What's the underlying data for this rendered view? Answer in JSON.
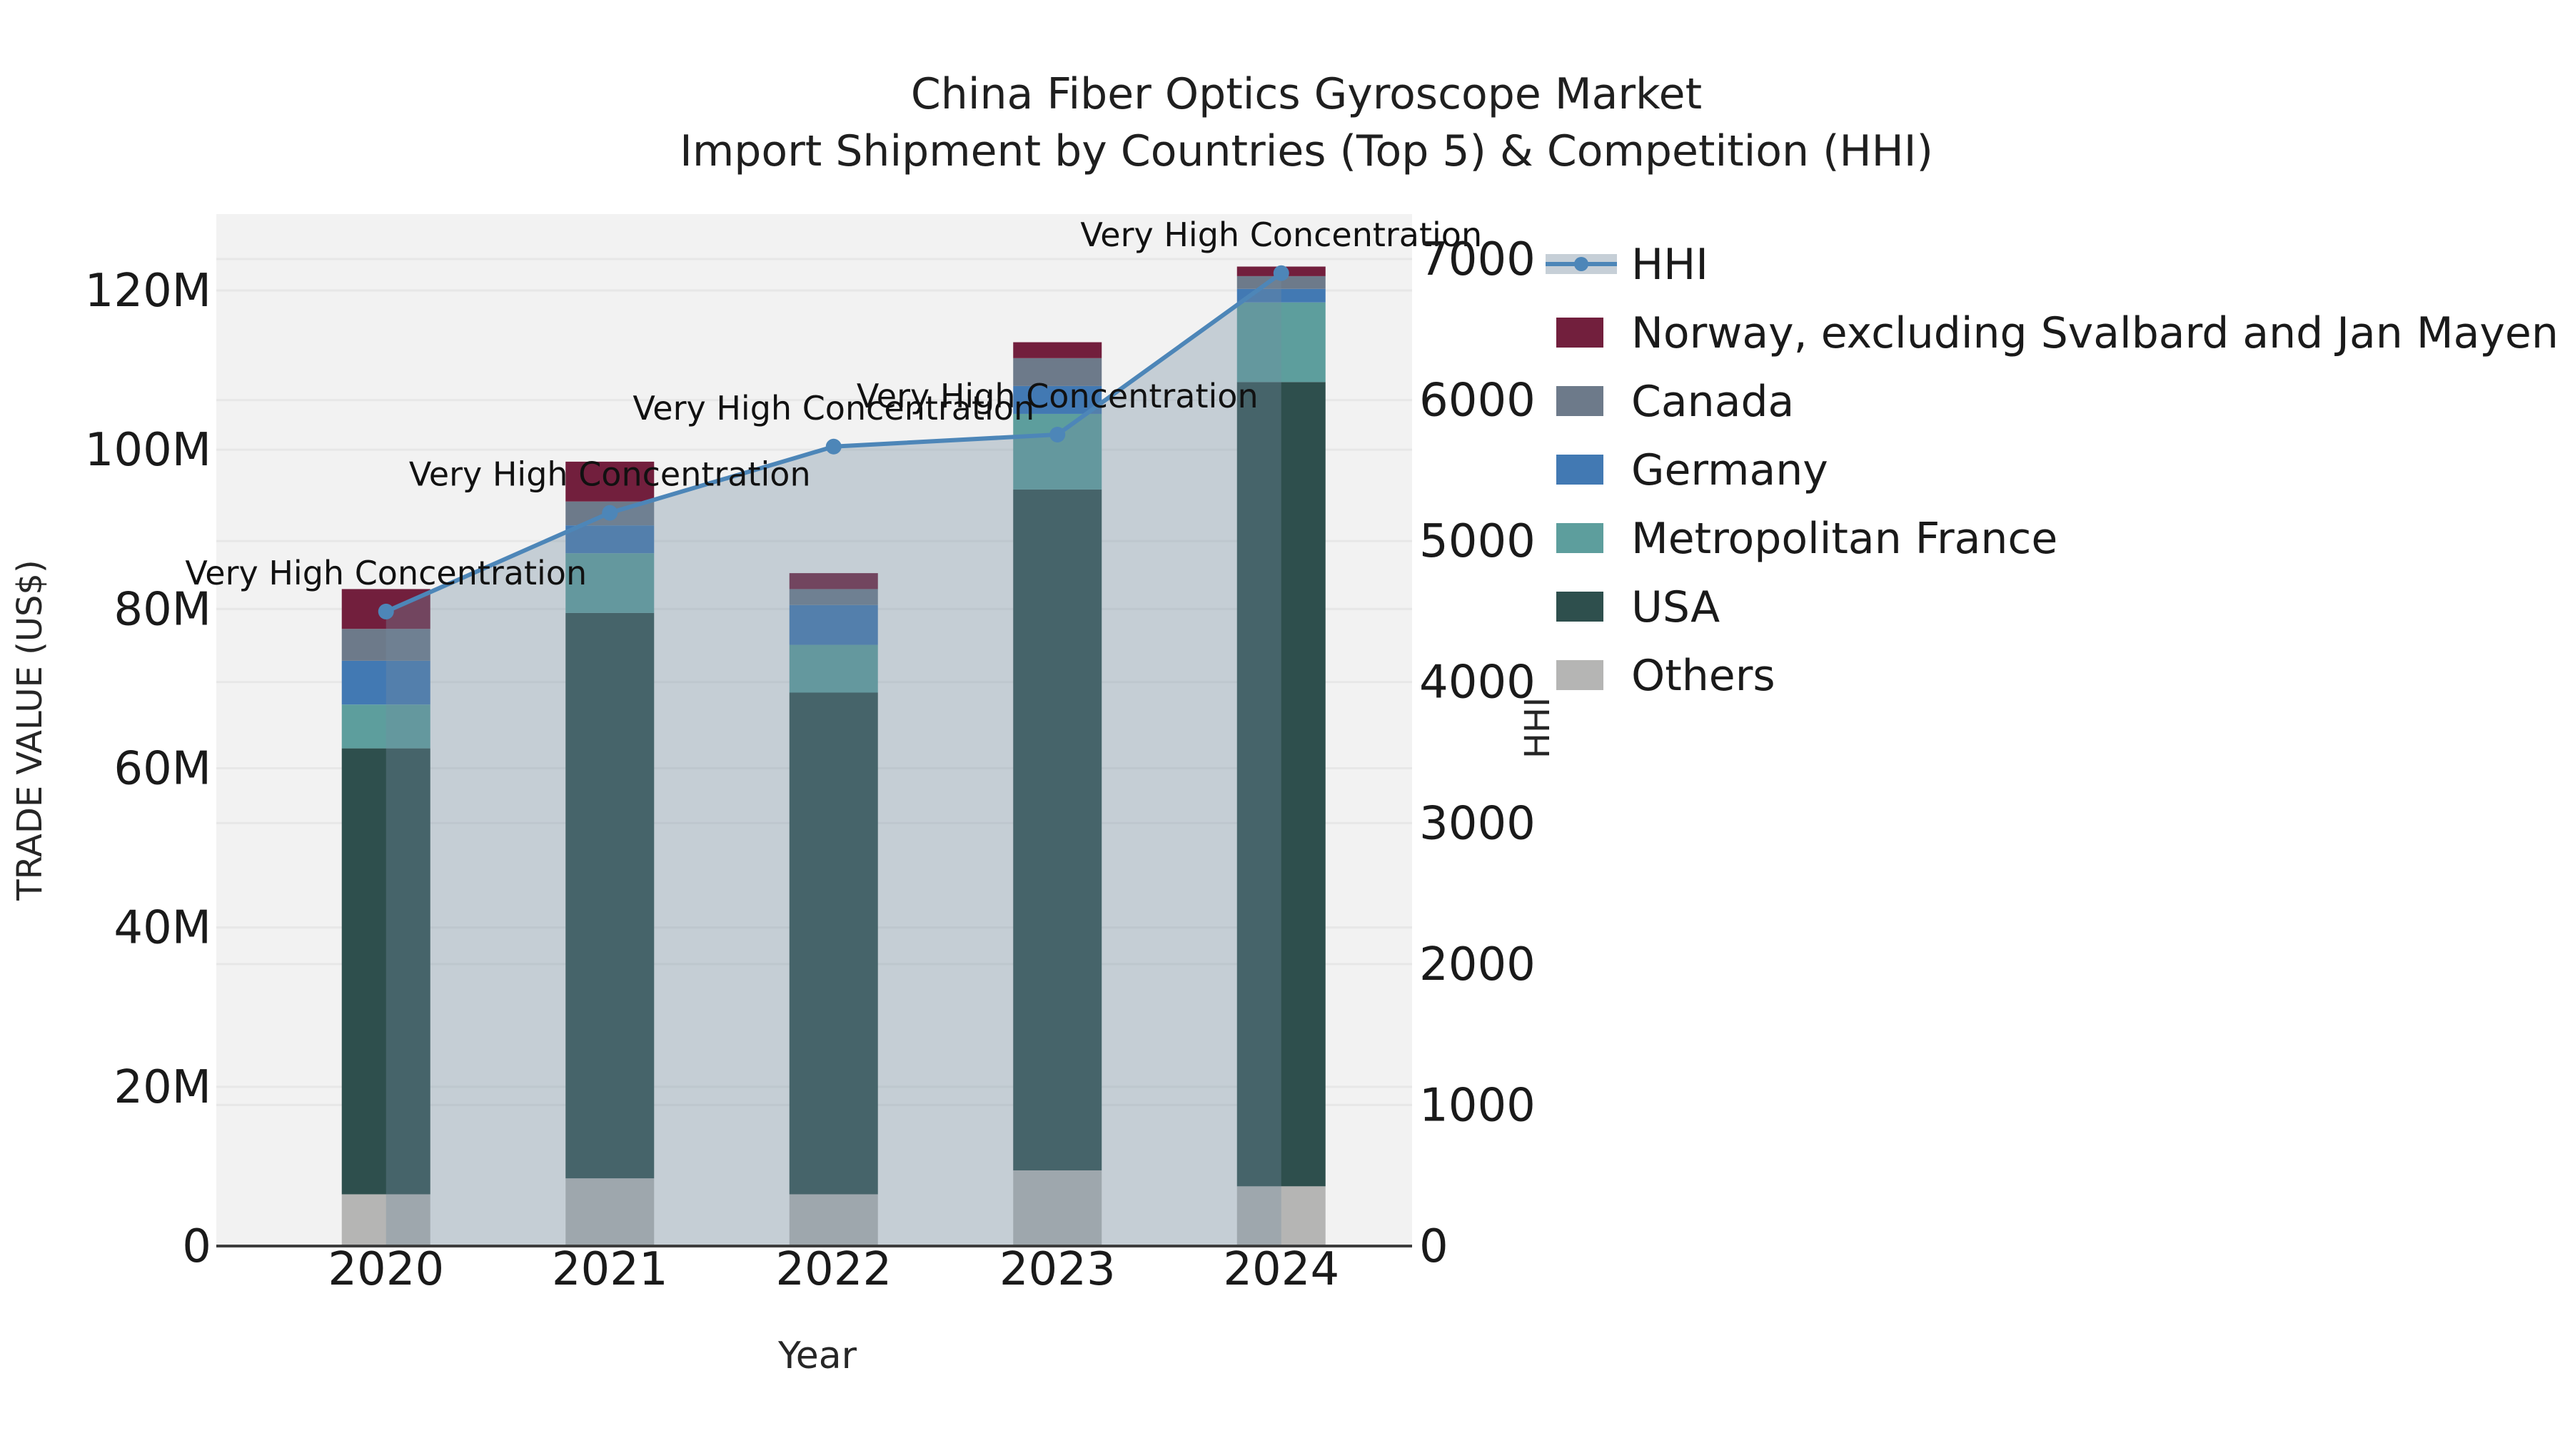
{
  "title": {
    "line1": "China Fiber Optics Gyroscope Market",
    "line2": "Import Shipment by Countries (Top 5) & Competition (HHI)"
  },
  "axes": {
    "x": {
      "label": "Year",
      "tick_labels": [
        "2020",
        "2021",
        "2022",
        "2023",
        "2024"
      ]
    },
    "y_left": {
      "label": "TRADE VALUE (US$)",
      "tick_labels": [
        "0",
        "20M",
        "40M",
        "60M",
        "80M",
        "100M",
        "120M"
      ],
      "tick_values_musd": [
        0,
        20,
        40,
        60,
        80,
        100,
        120
      ]
    },
    "y_right": {
      "label": "HHI",
      "tick_labels": [
        "0",
        "1000",
        "2000",
        "3000",
        "4000",
        "5000",
        "6000",
        "7000"
      ],
      "tick_values": [
        0,
        1000,
        2000,
        3000,
        4000,
        5000,
        6000,
        7000
      ]
    }
  },
  "legend": {
    "items": [
      {
        "label": "HHI",
        "marker": "line-dot",
        "color": "#4d86b8",
        "band_color": "#c6cfd7"
      },
      {
        "label": "Norway, excluding Svalbard and Jan Mayen",
        "marker": "patch",
        "color": "#721f3d"
      },
      {
        "label": "Canada",
        "marker": "patch",
        "color": "#6d7a8a"
      },
      {
        "label": "Germany",
        "marker": "patch",
        "color": "#4279b3"
      },
      {
        "label": "Metropolitan France",
        "marker": "patch",
        "color": "#5d9e9d"
      },
      {
        "label": "USA",
        "marker": "patch",
        "color": "#2e4f4d"
      },
      {
        "label": "Others",
        "marker": "patch",
        "color": "#b5b5b4"
      }
    ]
  },
  "colors": {
    "plot_bg": "#f2f2f2",
    "grid": "#e7e7e7",
    "spine": "#3d3d3d",
    "hhi_line": "#4d86b8",
    "area_fill": "rgba(115,140,161,0.35)"
  },
  "chart_data": {
    "type": "bar",
    "subtype": "stacked bars (left axis, trade value US$) + HHI line with shaded area (right axis)",
    "categories": [
      "2020",
      "2021",
      "2022",
      "2023",
      "2024"
    ],
    "xlabel": "Year",
    "ylabel_left": "TRADE VALUE (US$)",
    "ylabel_right": "HHI",
    "ylim_left_musd": [
      0,
      129.6
    ],
    "ylim_right": [
      0,
      7319
    ],
    "grid": "on",
    "legend_position": "outside upper right",
    "series": [
      {
        "name": "Others",
        "stack_position": 1,
        "color": "#b5b5b4",
        "values_musd": [
          6.5,
          8.5,
          6.5,
          9.5,
          7.5
        ]
      },
      {
        "name": "USA",
        "stack_position": 2,
        "color": "#2e4f4d",
        "values_musd": [
          56,
          71,
          63,
          85.5,
          101
        ]
      },
      {
        "name": "Metropolitan France",
        "stack_position": 3,
        "color": "#5d9e9d",
        "values_musd": [
          5.5,
          7.5,
          6,
          9.5,
          10
        ]
      },
      {
        "name": "Germany",
        "stack_position": 4,
        "color": "#4279b3",
        "values_musd": [
          5.5,
          3.5,
          5,
          3.5,
          1.7
        ]
      },
      {
        "name": "Canada",
        "stack_position": 5,
        "color": "#6d7a8a",
        "values_musd": [
          4,
          3,
          2,
          3.5,
          1.6
        ]
      },
      {
        "name": "Norway, excluding Svalbard and Jan Mayen",
        "stack_position": 6,
        "color": "#721f3d",
        "values_musd": [
          5,
          5,
          2,
          2,
          1.2
        ]
      }
    ],
    "bar_totals_musd": [
      82.5,
      98.5,
      84.5,
      113.5,
      123
    ],
    "line_series": {
      "name": "HHI",
      "axis": "right",
      "color": "#4d86b8",
      "values": [
        4500,
        5200,
        5670,
        5755,
        6900
      ],
      "area_under_line": true,
      "point_annotation": "Very High Concentration"
    }
  }
}
